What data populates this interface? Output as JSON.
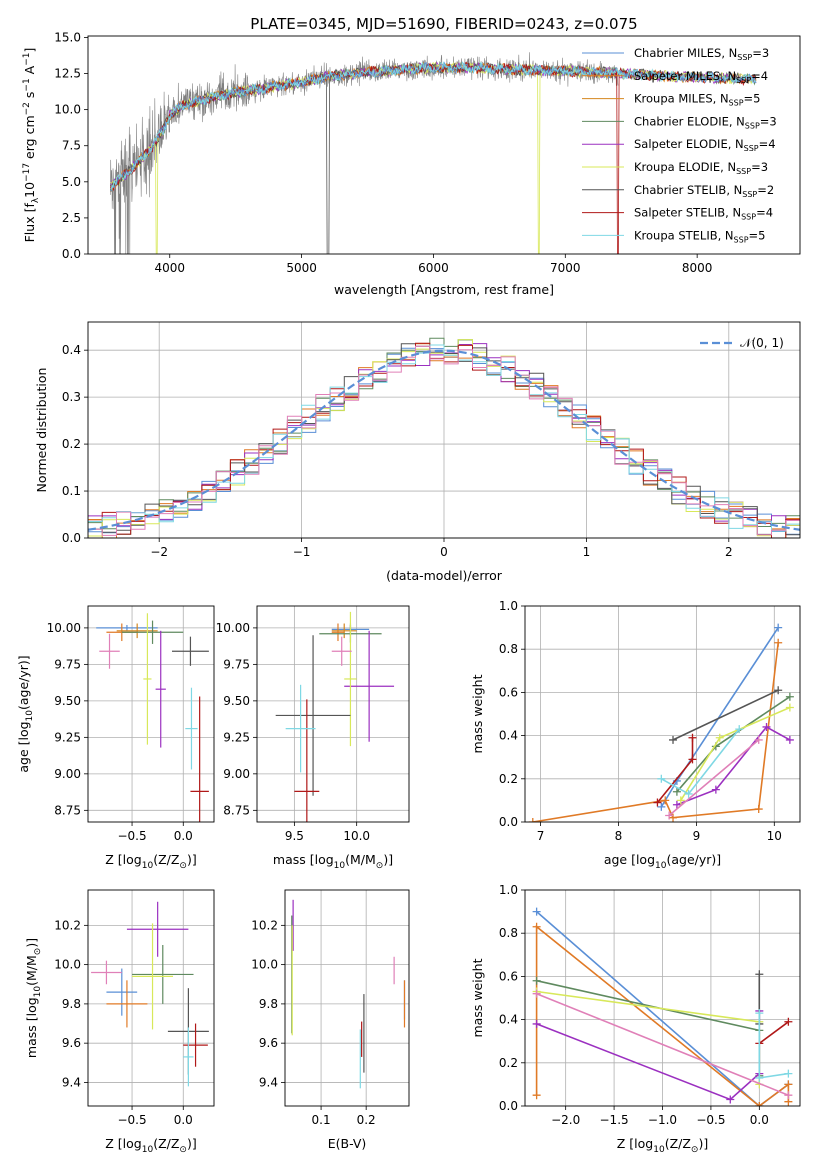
{
  "figure_title": "PLATE=0345, MJD=51690, FIBERID=0243, z=0.075",
  "model_colors": {
    "Chabrier MILES": "#5a8fd6",
    "Salpeter MILES": "#e07a26",
    "Kroupa MILES": "#d4861e",
    "Chabrier ELODIE": "#5f8a5f",
    "Salpeter ELODIE": "#9b30c0",
    "Kroupa ELODIE": "#d8e85a",
    "Chabrier STELIB": "#555555",
    "Salpeter STELIB": "#b01818",
    "Kroupa STELIB": "#7fd8e4",
    "pink": "#e080b8",
    "spectrum": "#808080"
  },
  "chart_data": [
    {
      "id": "spectrum",
      "type": "line",
      "title": "PLATE=0345, MJD=51690, FIBERID=0243, z=0.075",
      "xlabel": "wavelength [Angstrom, rest frame]",
      "ylabel_parts": [
        "Flux [f",
        "λ",
        "10",
        "−17",
        " erg cm",
        "−2",
        " s",
        "−1",
        " A",
        "−1",
        "]"
      ],
      "xlim": [
        3380,
        8780
      ],
      "ylim": [
        0,
        15.1
      ],
      "xticks": [
        4000,
        5000,
        6000,
        7000,
        8000
      ],
      "yticks": [
        0.0,
        2.5,
        5.0,
        7.5,
        10.0,
        12.5,
        15.0
      ],
      "legend_position": "upper right",
      "legend": [
        {
          "label": "Chabrier MILES, N",
          "sub": "SSP",
          "suffix": "=3",
          "color": "#5a8fd6"
        },
        {
          "label": "Salpeter MILES, N",
          "sub": "SSP",
          "suffix": "=4",
          "color": "#e07a26"
        },
        {
          "label": "Kroupa MILES, N",
          "sub": "SSP",
          "suffix": "=5",
          "color": "#d4861e"
        },
        {
          "label": "Chabrier ELODIE, N",
          "sub": "SSP",
          "suffix": "=3",
          "color": "#5f8a5f"
        },
        {
          "label": "Salpeter ELODIE, N",
          "sub": "SSP",
          "suffix": "=4",
          "color": "#9b30c0"
        },
        {
          "label": "Kroupa ELODIE, N",
          "sub": "SSP",
          "suffix": "=3",
          "color": "#d8e85a"
        },
        {
          "label": "Chabrier STELIB, N",
          "sub": "SSP",
          "suffix": "=2",
          "color": "#555555"
        },
        {
          "label": "Salpeter STELIB, N",
          "sub": "SSP",
          "suffix": "=4",
          "color": "#b01818"
        },
        {
          "label": "Kroupa STELIB, N",
          "sub": "SSP",
          "suffix": "=5",
          "color": "#7fd8e4"
        }
      ],
      "continuum": {
        "x": [
          3550,
          3700,
          3850,
          3950,
          4000,
          4100,
          4300,
          4500,
          4800,
          5000,
          5200,
          5500,
          5800,
          6000,
          6300,
          6600,
          6900,
          7200,
          7500,
          7800,
          8100,
          8400,
          8700
        ],
        "y": [
          4.6,
          5.8,
          7.2,
          8.6,
          9.6,
          10.3,
          10.8,
          11.2,
          11.6,
          11.9,
          12.3,
          12.6,
          12.8,
          12.9,
          12.9,
          12.8,
          12.7,
          12.6,
          12.5,
          12.3,
          12.2,
          12.1,
          12.0
        ]
      },
      "model_x_range": [
        3550,
        8450
      ],
      "data_x_range": [
        3550,
        7400
      ],
      "model_dips": [
        {
          "series": "Kroupa ELODIE",
          "x": [
            3900,
            6800
          ]
        },
        {
          "series": "Chabrier STELIB",
          "x": [
            5200
          ]
        },
        {
          "series": "Salpeter STELIB",
          "x": [
            7400
          ]
        }
      ]
    },
    {
      "id": "residuals",
      "type": "line",
      "xlabel": "(data-model)/error",
      "ylabel": "Normed distribution",
      "xlim": [
        -2.5,
        2.5
      ],
      "ylim": [
        0,
        0.46
      ],
      "xticks": [
        -2,
        -1,
        0,
        1,
        2
      ],
      "yticks": [
        0.0,
        0.1,
        0.2,
        0.3,
        0.4
      ],
      "grid": true,
      "legend_position": "upper right",
      "legend": [
        {
          "label": "𝒩(0, 1)",
          "color": "#5a8fd6",
          "style": "dashed"
        }
      ],
      "bin_width": 0.1,
      "histograms": [
        "Chabrier MILES",
        "Salpeter MILES",
        "Chabrier ELODIE",
        "Salpeter ELODIE",
        "Kroupa ELODIE",
        "Chabrier STELIB",
        "Salpeter STELIB",
        "Kroupa STELIB",
        "pink"
      ]
    },
    {
      "id": "age-vs-Z",
      "type": "scatter",
      "xlabel_parts": [
        "Z [log",
        "10",
        "(Z/Z",
        "⊙",
        ")]"
      ],
      "ylabel_parts": [
        "age  [log",
        "10",
        "(age/yr)]"
      ],
      "xlim": [
        -0.93,
        0.3
      ],
      "ylim": [
        8.67,
        10.15
      ],
      "xticks": [
        -0.5,
        0.0
      ],
      "xticklabels": [
        "−0.5",
        "0.0"
      ],
      "yticks": [
        8.75,
        9.0,
        9.25,
        9.5,
        9.75,
        10.0
      ],
      "grid": true,
      "points": [
        {
          "series": "Chabrier MILES",
          "x": -0.55,
          "y": 10.0,
          "xerr": 0.3,
          "yerr": 0.02
        },
        {
          "series": "Salpeter MILES",
          "x": -0.6,
          "y": 9.97,
          "xerr": 0.15,
          "yerr": 0.06
        },
        {
          "series": "Kroupa MILES",
          "x": -0.45,
          "y": 9.98,
          "xerr": 0.2,
          "yerr": 0.05
        },
        {
          "series": "Chabrier ELODIE",
          "x": -0.3,
          "y": 9.97,
          "xerr": 0.3,
          "yerr": 0.08
        },
        {
          "series": "Salpeter ELODIE",
          "x": -0.22,
          "y": 9.58,
          "xerr": 0.05,
          "yerr": 0.4
        },
        {
          "series": "Kroupa ELODIE",
          "x": -0.35,
          "y": 9.65,
          "xerr": 0.04,
          "yerr": 0.45
        },
        {
          "series": "Chabrier STELIB",
          "x": 0.07,
          "y": 9.84,
          "xerr": 0.18,
          "yerr": 0.1
        },
        {
          "series": "Salpeter STELIB",
          "x": 0.16,
          "y": 8.88,
          "xerr": 0.09,
          "yerr": 0.65
        },
        {
          "series": "Kroupa STELIB",
          "x": 0.08,
          "y": 9.31,
          "xerr": 0.06,
          "yerr": 0.28
        },
        {
          "series": "pink",
          "x": -0.72,
          "y": 9.84,
          "xerr": 0.1,
          "yerr": 0.12
        }
      ]
    },
    {
      "id": "age-vs-mass",
      "type": "scatter",
      "xlabel_parts": [
        "mass [log",
        "10",
        "(M/M",
        "⊙",
        ")]"
      ],
      "ylabel": "",
      "xlim": [
        9.2,
        10.42
      ],
      "ylim": [
        8.67,
        10.15
      ],
      "xticks": [
        9.5,
        10.0
      ],
      "xticklabels": [
        "9.5",
        "10.0"
      ],
      "yticks": [
        8.75,
        9.0,
        9.25,
        9.5,
        9.75,
        10.0
      ],
      "grid": true,
      "points": [
        {
          "series": "Chabrier MILES",
          "x": 9.95,
          "y": 9.99,
          "xerr": 0.15,
          "yerr": 0.04
        },
        {
          "series": "Salpeter MILES",
          "x": 9.85,
          "y": 9.97,
          "xerr": 0.05,
          "yerr": 0.06
        },
        {
          "series": "Kroupa MILES",
          "x": 9.9,
          "y": 9.98,
          "xerr": 0.1,
          "yerr": 0.05
        },
        {
          "series": "Chabrier ELODIE",
          "x": 9.95,
          "y": 9.96,
          "xerr": 0.25,
          "yerr": 0.06
        },
        {
          "series": "Salpeter ELODIE",
          "x": 10.1,
          "y": 9.6,
          "xerr": 0.2,
          "yerr": 0.38
        },
        {
          "series": "Kroupa ELODIE",
          "x": 9.95,
          "y": 9.65,
          "xerr": 0.05,
          "yerr": 0.46
        },
        {
          "series": "Chabrier STELIB",
          "x": 9.65,
          "y": 9.4,
          "xerr": 0.3,
          "yerr": 0.55
        },
        {
          "series": "Salpeter STELIB",
          "x": 9.6,
          "y": 8.88,
          "xerr": 0.1,
          "yerr": 0.63
        },
        {
          "series": "Kroupa STELIB",
          "x": 9.55,
          "y": 9.31,
          "xerr": 0.12,
          "yerr": 0.3
        },
        {
          "series": "pink",
          "x": 9.88,
          "y": 9.84,
          "xerr": 0.08,
          "yerr": 0.1
        }
      ]
    },
    {
      "id": "massweight-vs-age",
      "type": "line",
      "xlabel_parts": [
        "age  [log",
        "10",
        "(age/yr)]"
      ],
      "ylabel": "mass weight",
      "xlim": [
        6.8,
        10.33
      ],
      "ylim": [
        0,
        1.0
      ],
      "xticks": [
        7,
        8,
        9,
        10
      ],
      "yticks": [
        0.0,
        0.2,
        0.4,
        0.6,
        0.8,
        1.0
      ],
      "grid": true,
      "series": [
        {
          "name": "Chabrier MILES",
          "x": [
            8.55,
            8.75,
            10.05
          ],
          "y": [
            0.07,
            0.19,
            0.9
          ]
        },
        {
          "name": "Salpeter MILES",
          "x": [
            6.9,
            8.6,
            8.7,
            9.8,
            10.05
          ],
          "y": [
            0.0,
            0.1,
            0.02,
            0.06,
            0.83
          ]
        },
        {
          "name": "Chabrier ELODIE",
          "x": [
            8.75,
            9.25,
            10.2
          ],
          "y": [
            0.14,
            0.35,
            0.58
          ]
        },
        {
          "name": "Salpeter ELODIE",
          "x": [
            8.75,
            9.25,
            9.9,
            10.2
          ],
          "y": [
            0.08,
            0.15,
            0.44,
            0.38
          ]
        },
        {
          "name": "Kroupa ELODIE",
          "x": [
            8.8,
            9.3,
            10.2
          ],
          "y": [
            0.1,
            0.39,
            0.53
          ]
        },
        {
          "name": "Chabrier STELIB",
          "x": [
            8.7,
            10.05
          ],
          "y": [
            0.38,
            0.61
          ]
        },
        {
          "name": "Salpeter STELIB",
          "x": [
            8.5,
            8.95,
            8.95
          ],
          "y": [
            0.09,
            0.29,
            0.39
          ]
        },
        {
          "name": "Kroupa STELIB",
          "x": [
            8.55,
            8.9,
            9.55
          ],
          "y": [
            0.2,
            0.13,
            0.43
          ]
        },
        {
          "name": "pink",
          "x": [
            8.65,
            9.8
          ],
          "y": [
            0.03,
            0.38
          ]
        }
      ]
    },
    {
      "id": "mass-vs-Z",
      "type": "scatter",
      "xlabel_parts": [
        "Z [log",
        "10",
        "(Z/Z",
        "⊙",
        ")]"
      ],
      "ylabel_parts": [
        "mass [log",
        "10",
        "(M/M",
        "⊙",
        ")]"
      ],
      "xlim": [
        -0.93,
        0.3
      ],
      "ylim": [
        9.28,
        10.38
      ],
      "xticks": [
        -0.5,
        0.0
      ],
      "xticklabels": [
        "−0.5",
        "0.0"
      ],
      "yticks": [
        9.4,
        9.6,
        9.8,
        10.0,
        10.2
      ],
      "grid": true,
      "points": [
        {
          "series": "Chabrier MILES",
          "x": -0.6,
          "y": 9.86,
          "xerr": 0.15,
          "yerr": 0.12
        },
        {
          "series": "Salpeter MILES",
          "x": -0.55,
          "y": 9.8,
          "xerr": 0.2,
          "yerr": 0.12
        },
        {
          "series": "Chabrier ELODIE",
          "x": -0.2,
          "y": 9.95,
          "xerr": 0.3,
          "yerr": 0.15
        },
        {
          "series": "Salpeter ELODIE",
          "x": -0.25,
          "y": 10.18,
          "xerr": 0.3,
          "yerr": 0.14
        },
        {
          "series": "Kroupa ELODIE",
          "x": -0.3,
          "y": 9.94,
          "xerr": 0.2,
          "yerr": 0.27
        },
        {
          "series": "Chabrier STELIB",
          "x": 0.05,
          "y": 9.66,
          "xerr": 0.2,
          "yerr": 0.22
        },
        {
          "series": "Salpeter STELIB",
          "x": 0.12,
          "y": 9.59,
          "xerr": 0.12,
          "yerr": 0.11
        },
        {
          "series": "Kroupa STELIB",
          "x": 0.05,
          "y": 9.53,
          "xerr": 0.05,
          "yerr": 0.15
        },
        {
          "series": "pink",
          "x": -0.75,
          "y": 9.96,
          "xerr": 0.15,
          "yerr": 0.06
        }
      ]
    },
    {
      "id": "mass-vs-EBV",
      "type": "scatter",
      "xlabel": "E(B-V)",
      "ylabel": "",
      "xlim": [
        0.02,
        0.295
      ],
      "ylim": [
        9.28,
        10.38
      ],
      "xticks": [
        0.1,
        0.2
      ],
      "xticklabels": [
        "0.1",
        "0.2"
      ],
      "yticks": [
        9.4,
        9.6,
        9.8,
        10.0,
        10.2
      ],
      "grid": true,
      "points": [
        {
          "series": "Chabrier MILES",
          "x": 0.285,
          "y": 9.82,
          "xerr": 0,
          "yerr": 0.1
        },
        {
          "series": "Salpeter MILES",
          "x": 0.285,
          "y": 9.8,
          "xerr": 0,
          "yerr": 0.12
        },
        {
          "series": "Chabrier ELODIE",
          "x": 0.035,
          "y": 9.95,
          "xerr": 0,
          "yerr": 0.3
        },
        {
          "series": "Salpeter ELODIE",
          "x": 0.038,
          "y": 10.2,
          "xerr": 0,
          "yerr": 0.13
        },
        {
          "series": "Kroupa ELODIE",
          "x": 0.036,
          "y": 9.92,
          "xerr": 0,
          "yerr": 0.28
        },
        {
          "series": "Chabrier STELIB",
          "x": 0.195,
          "y": 9.65,
          "xerr": 0,
          "yerr": 0.2
        },
        {
          "series": "Salpeter STELIB",
          "x": 0.19,
          "y": 9.62,
          "xerr": 0,
          "yerr": 0.09
        },
        {
          "series": "Kroupa STELIB",
          "x": 0.187,
          "y": 9.52,
          "xerr": 0,
          "yerr": 0.15
        },
        {
          "series": "pink",
          "x": 0.262,
          "y": 9.97,
          "xerr": 0,
          "yerr": 0.07
        }
      ]
    },
    {
      "id": "massweight-vs-Z",
      "type": "line",
      "xlabel_parts": [
        "Z [log",
        "10",
        "(Z/Z",
        "⊙",
        ")]"
      ],
      "ylabel": "mass weight",
      "xlim": [
        -2.42,
        0.42
      ],
      "ylim": [
        0,
        1.0
      ],
      "xticks": [
        -2.0,
        -1.5,
        -1.0,
        -0.5,
        0.0
      ],
      "xticklabels": [
        "−2.0",
        "−1.5",
        "−1.0",
        "−0.5",
        "0.0"
      ],
      "yticks": [
        0.0,
        0.2,
        0.4,
        0.6,
        0.8,
        1.0
      ],
      "grid": true,
      "series": [
        {
          "name": "Chabrier MILES",
          "x": [
            -2.3,
            0.0,
            0.3
          ],
          "y": [
            0.9,
            0.0,
            0.1
          ]
        },
        {
          "name": "Salpeter MILES",
          "x": [
            -2.3,
            -2.3,
            0.0,
            0.3,
            0.3
          ],
          "y": [
            0.05,
            0.83,
            0.0,
            0.1,
            0.02
          ]
        },
        {
          "name": "Chabrier ELODIE",
          "x": [
            -2.3,
            0.0,
            0.0
          ],
          "y": [
            0.58,
            0.35,
            0.14
          ]
        },
        {
          "name": "Salpeter ELODIE",
          "x": [
            -2.3,
            -0.3,
            0.0,
            0.0
          ],
          "y": [
            0.38,
            0.03,
            0.15,
            0.44
          ]
        },
        {
          "name": "Kroupa ELODIE",
          "x": [
            -2.3,
            0.0,
            0.0
          ],
          "y": [
            0.53,
            0.39,
            0.1
          ]
        },
        {
          "name": "Chabrier STELIB",
          "x": [
            0.0,
            0.0
          ],
          "y": [
            0.38,
            0.61
          ]
        },
        {
          "name": "Salpeter STELIB",
          "x": [
            0.0,
            0.3
          ],
          "y": [
            0.29,
            0.39
          ]
        },
        {
          "name": "Kroupa STELIB",
          "x": [
            0.0,
            0.0,
            0.3
          ],
          "y": [
            0.43,
            0.13,
            0.15
          ]
        },
        {
          "name": "pink",
          "x": [
            -2.3,
            0.3
          ],
          "y": [
            0.52,
            0.05
          ]
        }
      ]
    }
  ]
}
